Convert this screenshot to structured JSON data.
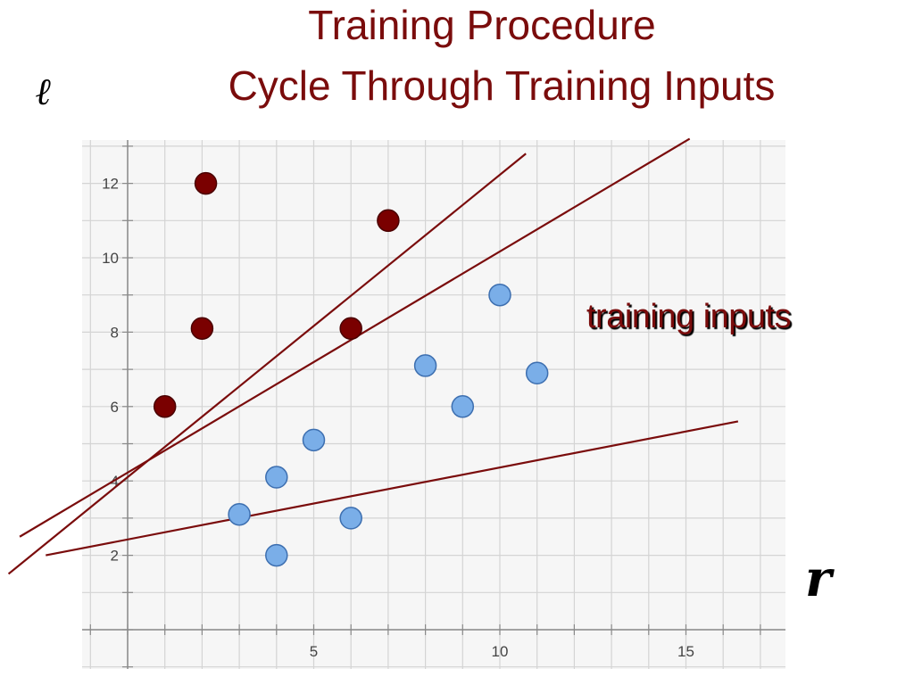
{
  "title_line1": "Training Procedure",
  "title_line2": "Cycle Through Training Inputs",
  "left_symbol": "ℓ",
  "right_symbol": "r",
  "annotation": "training inputs",
  "colors": {
    "title": "#7a0c0c",
    "class_a_point": "#7a0000",
    "class_b_point": "#7aaee8",
    "line": "#7a0c0c",
    "grid": "#d4d4d4"
  },
  "chart_data": {
    "type": "scatter",
    "xlim": [
      -1,
      17
    ],
    "ylim": [
      -1,
      13.5
    ],
    "x_ticks": [
      5,
      10,
      15
    ],
    "y_ticks": [
      2,
      4,
      6,
      8,
      10,
      12
    ],
    "x_tick_labels": [
      "5",
      "10",
      "15"
    ],
    "y_tick_labels": [
      "2",
      "4",
      "6",
      "8",
      "10",
      "12"
    ],
    "grid": true,
    "series": [
      {
        "points": [
          [
            1,
            6
          ],
          [
            2.1,
            12
          ],
          [
            2,
            8.1
          ],
          [
            6,
            8.1
          ],
          [
            7,
            11
          ]
        ]
      },
      {
        "points": [
          [
            3,
            3.1
          ],
          [
            4,
            4.1
          ],
          [
            4,
            2
          ],
          [
            5,
            5.1
          ],
          [
            6,
            3
          ],
          [
            8,
            7.1
          ],
          [
            9,
            6
          ],
          [
            10,
            9
          ],
          [
            11,
            6.9
          ]
        ]
      }
    ],
    "lines": [
      {
        "from": [
          -3.2,
          1.5
        ],
        "to": [
          10.7,
          12.8
        ]
      },
      {
        "from": [
          -2.9,
          2.5
        ],
        "to": [
          15.1,
          13.2
        ]
      },
      {
        "from": [
          -2.2,
          2.0
        ],
        "to": [
          16.4,
          5.6
        ]
      }
    ]
  }
}
